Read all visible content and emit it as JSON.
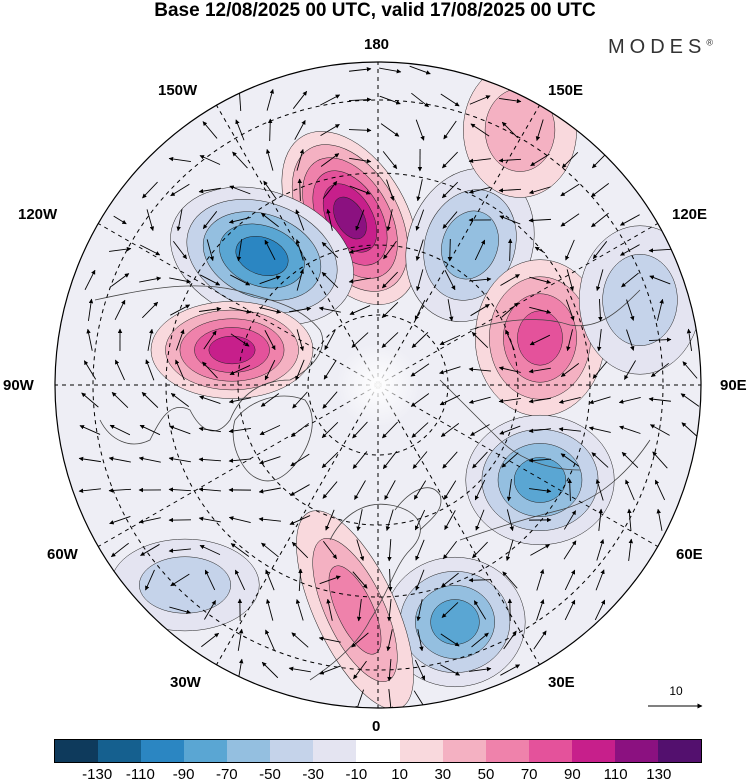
{
  "title": "Base 12/08/2025 00 UTC, valid 17/08/2025 00 UTC",
  "brand": {
    "name": "MODES",
    "mark": "®"
  },
  "longitude_labels": {
    "lon_180": "180",
    "lon_150w": "150W",
    "lon_150e": "150E",
    "lon_120w": "120W",
    "lon_120e": "120E",
    "lon_90w": "90W",
    "lon_90e": "90E",
    "lon_60w": "60W",
    "lon_60e": "60E",
    "lon_30w": "30W",
    "lon_30e": "30E",
    "lon_0": "0"
  },
  "reference_vector": {
    "value": "10"
  },
  "colorbar": {
    "colors": [
      "#0e3a5c",
      "#15608f",
      "#2b86c2",
      "#5aa6d3",
      "#94bfe0",
      "#c5d3ea",
      "#e4e4f1",
      "#ffffff",
      "#f9d9dd",
      "#f4b1c2",
      "#ef82ab",
      "#e4529b",
      "#c71f8b",
      "#8b1180",
      "#53106e"
    ],
    "ticks": [
      "-130",
      "-110",
      "-90",
      "-70",
      "-50",
      "-30",
      "-10",
      "10",
      "30",
      "50",
      "70",
      "90",
      "110",
      "130"
    ]
  },
  "anomaly_centers": [
    {
      "name": "high-n-pacific",
      "value": 110
    },
    {
      "name": "low-n-america",
      "value": -100
    },
    {
      "name": "high-hudson",
      "value": 90
    },
    {
      "name": "low-e-siberia",
      "value": -60
    },
    {
      "name": "high-c-siberia",
      "value": 70
    },
    {
      "name": "low-ural",
      "value": -70
    },
    {
      "name": "low-europe",
      "value": -80
    },
    {
      "name": "high-n-atlantic",
      "value": 60
    },
    {
      "name": "low-n-atlantic",
      "value": -40
    },
    {
      "name": "high-w-pacific",
      "value": 30
    },
    {
      "name": "low-c-asia",
      "value": -40
    }
  ]
}
